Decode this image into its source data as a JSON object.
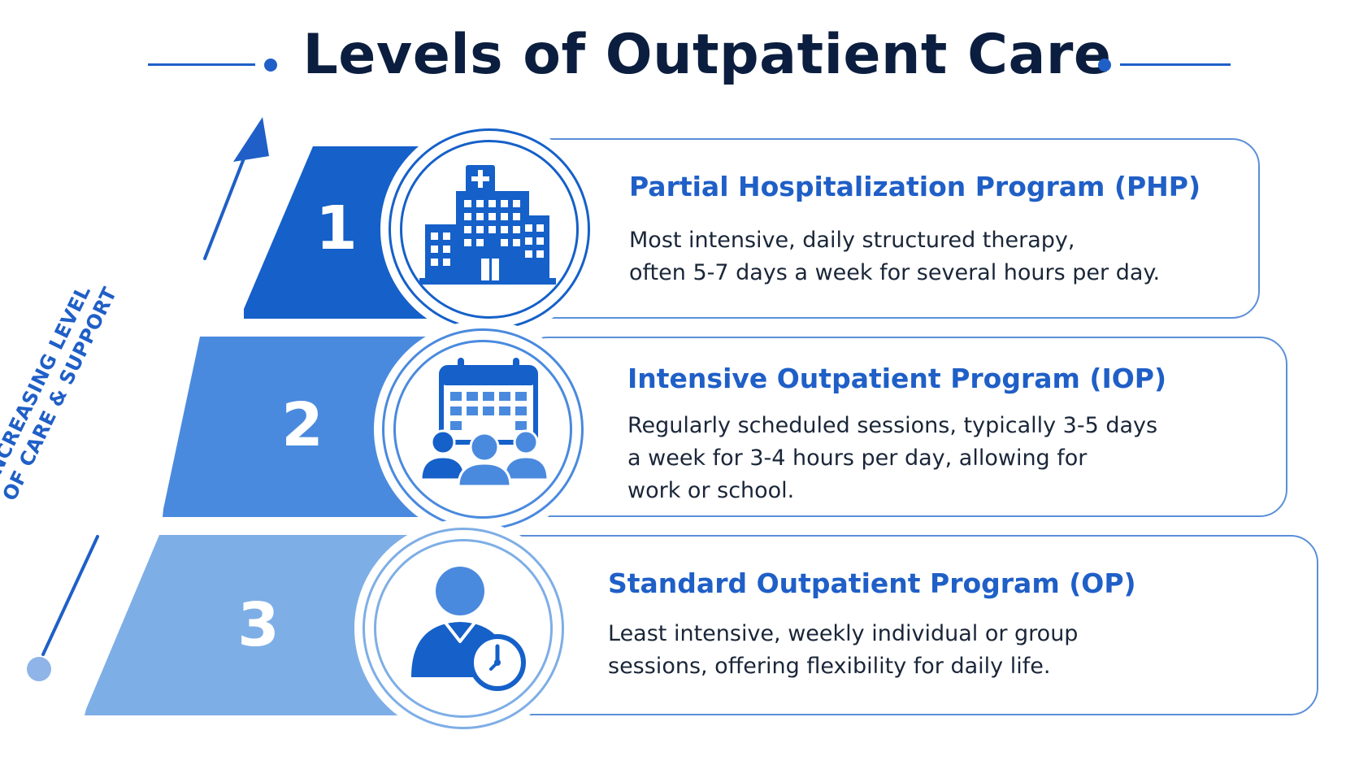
{
  "title": "Levels of Outpatient Care",
  "side_label": {
    "line1": "Increasing Level",
    "line2": "of Care & Support"
  },
  "colors": {
    "dark_blue": "#1560c9",
    "mid_blue": "#4a8ade",
    "light_blue": "#7eaee6",
    "title_navy": "#0b1e3f",
    "accent": "#1f5fc7"
  },
  "levels": [
    {
      "number": "1",
      "icon": "hospital-building-icon",
      "title": "Partial Hospitalization Program (PHP)",
      "description": [
        "Most intensive, daily structured therapy,",
        "often 5-7 days a week for several hours per day."
      ]
    },
    {
      "number": "2",
      "icon": "calendar-group-icon",
      "title": "Intensive Outpatient Program (IOP)",
      "description": [
        "Regularly scheduled sessions, typically 3-5 days",
        "a week for 3-4 hours per day, allowing for",
        "work or school."
      ]
    },
    {
      "number": "3",
      "icon": "person-clock-icon",
      "title": "Standard Outpatient Program (OP)",
      "description": [
        "Least intensive, weekly individual or group",
        "sessions, offering flexibility for daily life."
      ]
    }
  ]
}
